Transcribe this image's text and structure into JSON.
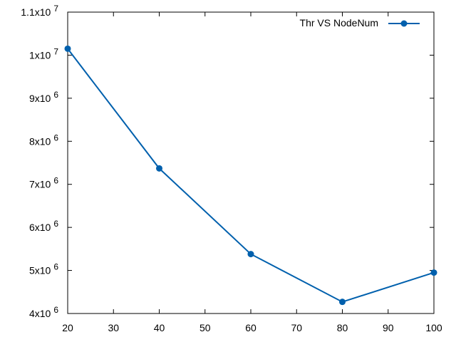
{
  "chart_data": {
    "type": "line",
    "title": "",
    "xlabel": "",
    "ylabel": "",
    "xlim": [
      20,
      100
    ],
    "ylim": [
      4000000,
      11000000
    ],
    "grid": false,
    "legend_position": "top-right",
    "x_ticks": [
      20,
      30,
      40,
      50,
      60,
      70,
      80,
      90,
      100
    ],
    "x_tick_labels": [
      "20",
      "30",
      "40",
      "50",
      "60",
      "70",
      "80",
      "90",
      "100"
    ],
    "y_ticks": [
      4000000,
      5000000,
      6000000,
      7000000,
      8000000,
      9000000,
      10000000,
      11000000
    ],
    "y_tick_labels": [
      {
        "mantissa": "4x10",
        "exponent": "6"
      },
      {
        "mantissa": "5x10",
        "exponent": "6"
      },
      {
        "mantissa": "6x10",
        "exponent": "6"
      },
      {
        "mantissa": "7x10",
        "exponent": "6"
      },
      {
        "mantissa": "8x10",
        "exponent": "6"
      },
      {
        "mantissa": "9x10",
        "exponent": "6"
      },
      {
        "mantissa": "1x10",
        "exponent": "7"
      },
      {
        "mantissa": "1.1x10",
        "exponent": "7"
      }
    ],
    "series": [
      {
        "name": "Thr VS NodeNum",
        "color": "#0060ad",
        "marker": "circle",
        "x": [
          20,
          40,
          60,
          80,
          100
        ],
        "y": [
          10150000,
          7370000,
          5380000,
          4270000,
          4950000
        ]
      }
    ]
  }
}
